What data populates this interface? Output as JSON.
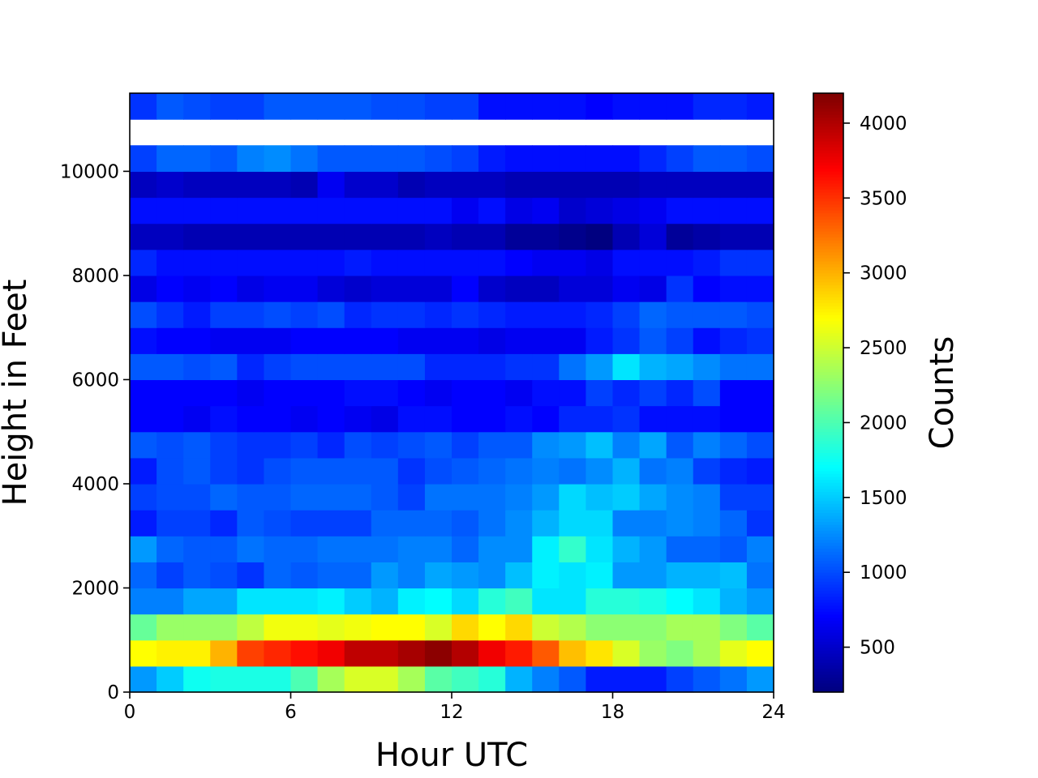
{
  "chart_data": {
    "type": "heatmap",
    "title": "",
    "xlabel": "Hour UTC",
    "ylabel": "Height in Feet",
    "colorbar_label": "Counts",
    "colormap": "jet",
    "xlim": [
      0,
      24
    ],
    "ylim": [
      0,
      11500
    ],
    "clim": [
      200,
      4200
    ],
    "x_bin_width_hours": 1,
    "y_bin_height_feet": 500,
    "xticks": [
      0,
      6,
      12,
      18,
      24
    ],
    "xtick_labels": [
      "0",
      "6",
      "12",
      "18",
      "24"
    ],
    "yticks": [
      0,
      2000,
      4000,
      6000,
      8000,
      10000
    ],
    "ytick_labels": [
      "0",
      "2000",
      "4000",
      "6000",
      "8000",
      "10000"
    ],
    "colorbar_ticks": [
      500,
      1000,
      1500,
      2000,
      2500,
      3000,
      3500,
      4000
    ],
    "colorbar_tick_labels": [
      "500",
      "1000",
      "1500",
      "2000",
      "2500",
      "3000",
      "3500",
      "4000"
    ],
    "grid": false,
    "rows_bottom_to_top": [
      [
        1300,
        1500,
        1750,
        1800,
        1800,
        1800,
        2000,
        2350,
        2550,
        2550,
        2350,
        2050,
        1950,
        1850,
        1400,
        1200,
        1050,
        800,
        800,
        800,
        950,
        1050,
        1150,
        1300
      ],
      [
        2700,
        2750,
        2750,
        3000,
        3450,
        3550,
        3650,
        3750,
        3950,
        3950,
        4050,
        4150,
        4000,
        3750,
        3600,
        3350,
        2950,
        2800,
        2550,
        2300,
        2200,
        2350,
        2600,
        2700
      ],
      [
        2100,
        2300,
        2300,
        2300,
        2450,
        2650,
        2650,
        2600,
        2650,
        2700,
        2700,
        2550,
        2850,
        2700,
        2850,
        2500,
        2400,
        2250,
        2250,
        2250,
        2350,
        2350,
        2200,
        2050
      ],
      [
        1200,
        1200,
        1350,
        1350,
        1600,
        1600,
        1600,
        1650,
        1500,
        1400,
        1650,
        1700,
        1550,
        1850,
        1950,
        1600,
        1600,
        1850,
        1850,
        1800,
        1700,
        1600,
        1400,
        1300
      ],
      [
        1100,
        950,
        1050,
        1000,
        900,
        1100,
        1050,
        1100,
        1100,
        1300,
        1200,
        1350,
        1300,
        1250,
        1450,
        1650,
        1600,
        1650,
        1300,
        1300,
        1400,
        1400,
        1450,
        1150
      ],
      [
        1300,
        1100,
        1050,
        1050,
        1150,
        1100,
        1100,
        1150,
        1150,
        1150,
        1200,
        1200,
        1100,
        1250,
        1250,
        1650,
        1900,
        1600,
        1400,
        1300,
        1100,
        1100,
        1050,
        1200
      ],
      [
        800,
        950,
        950,
        850,
        1050,
        1000,
        950,
        950,
        950,
        1100,
        1100,
        1100,
        1050,
        1150,
        1250,
        1400,
        1550,
        1550,
        1200,
        1200,
        1250,
        1200,
        1100,
        900
      ],
      [
        950,
        1000,
        1000,
        1100,
        1050,
        1050,
        1100,
        1100,
        1100,
        1050,
        950,
        1150,
        1150,
        1150,
        1200,
        1300,
        1550,
        1450,
        1500,
        1350,
        1250,
        1200,
        950,
        950
      ],
      [
        800,
        1000,
        1050,
        950,
        900,
        1000,
        1050,
        1050,
        1050,
        1050,
        900,
        1000,
        1050,
        1100,
        1150,
        1200,
        1150,
        1250,
        1400,
        1150,
        1200,
        950,
        850,
        800
      ],
      [
        1050,
        1000,
        1050,
        950,
        900,
        900,
        950,
        850,
        1000,
        950,
        1000,
        1050,
        950,
        1050,
        1050,
        1250,
        1300,
        1450,
        1200,
        1350,
        1050,
        1200,
        1100,
        1000
      ],
      [
        700,
        700,
        650,
        750,
        700,
        700,
        650,
        700,
        650,
        600,
        750,
        750,
        700,
        700,
        750,
        700,
        850,
        850,
        900,
        750,
        750,
        750,
        700,
        700
      ],
      [
        700,
        700,
        700,
        700,
        650,
        700,
        700,
        700,
        750,
        750,
        700,
        650,
        700,
        700,
        650,
        750,
        750,
        950,
        850,
        950,
        850,
        1000,
        700,
        700
      ],
      [
        1050,
        1050,
        1000,
        1050,
        850,
        950,
        1000,
        1000,
        1000,
        1000,
        1000,
        850,
        850,
        850,
        900,
        900,
        1150,
        1300,
        1600,
        1400,
        1350,
        1250,
        1150,
        1150
      ],
      [
        750,
        700,
        700,
        650,
        650,
        650,
        700,
        700,
        700,
        700,
        650,
        650,
        650,
        600,
        650,
        650,
        650,
        800,
        900,
        1050,
        950,
        750,
        850,
        900
      ],
      [
        1000,
        900,
        800,
        950,
        950,
        1000,
        950,
        1000,
        850,
        900,
        900,
        850,
        900,
        850,
        800,
        800,
        800,
        850,
        950,
        1100,
        1050,
        1050,
        1050,
        1000
      ],
      [
        600,
        700,
        650,
        700,
        600,
        650,
        650,
        550,
        500,
        550,
        550,
        550,
        700,
        500,
        450,
        450,
        550,
        550,
        650,
        600,
        900,
        700,
        750,
        750
      ],
      [
        850,
        750,
        750,
        750,
        750,
        750,
        750,
        750,
        800,
        750,
        750,
        750,
        750,
        750,
        700,
        650,
        650,
        600,
        750,
        750,
        750,
        800,
        900,
        900
      ],
      [
        450,
        450,
        400,
        400,
        400,
        400,
        400,
        400,
        400,
        400,
        400,
        450,
        400,
        400,
        300,
        300,
        250,
        200,
        400,
        550,
        300,
        350,
        400,
        400
      ],
      [
        750,
        750,
        750,
        750,
        750,
        750,
        750,
        750,
        750,
        750,
        750,
        750,
        650,
        750,
        600,
        650,
        500,
        550,
        600,
        650,
        750,
        750,
        750,
        750
      ],
      [
        450,
        500,
        450,
        450,
        450,
        450,
        400,
        650,
        500,
        500,
        400,
        450,
        450,
        450,
        400,
        400,
        400,
        400,
        400,
        450,
        450,
        450,
        450,
        450
      ],
      [
        950,
        1100,
        1100,
        1050,
        1200,
        1250,
        1150,
        1050,
        1050,
        1050,
        1050,
        1000,
        950,
        800,
        750,
        750,
        750,
        750,
        750,
        850,
        950,
        1050,
        1050,
        1000
      ],
      [
        null,
        null,
        null,
        null,
        null,
        null,
        null,
        null,
        null,
        null,
        null,
        null,
        null,
        null,
        null,
        null,
        null,
        null,
        null,
        null,
        null,
        null,
        null,
        null
      ],
      [
        900,
        1050,
        1000,
        950,
        950,
        1050,
        1050,
        1050,
        1050,
        1000,
        1000,
        950,
        950,
        750,
        750,
        750,
        750,
        700,
        750,
        750,
        750,
        850,
        850,
        800
      ]
    ]
  }
}
